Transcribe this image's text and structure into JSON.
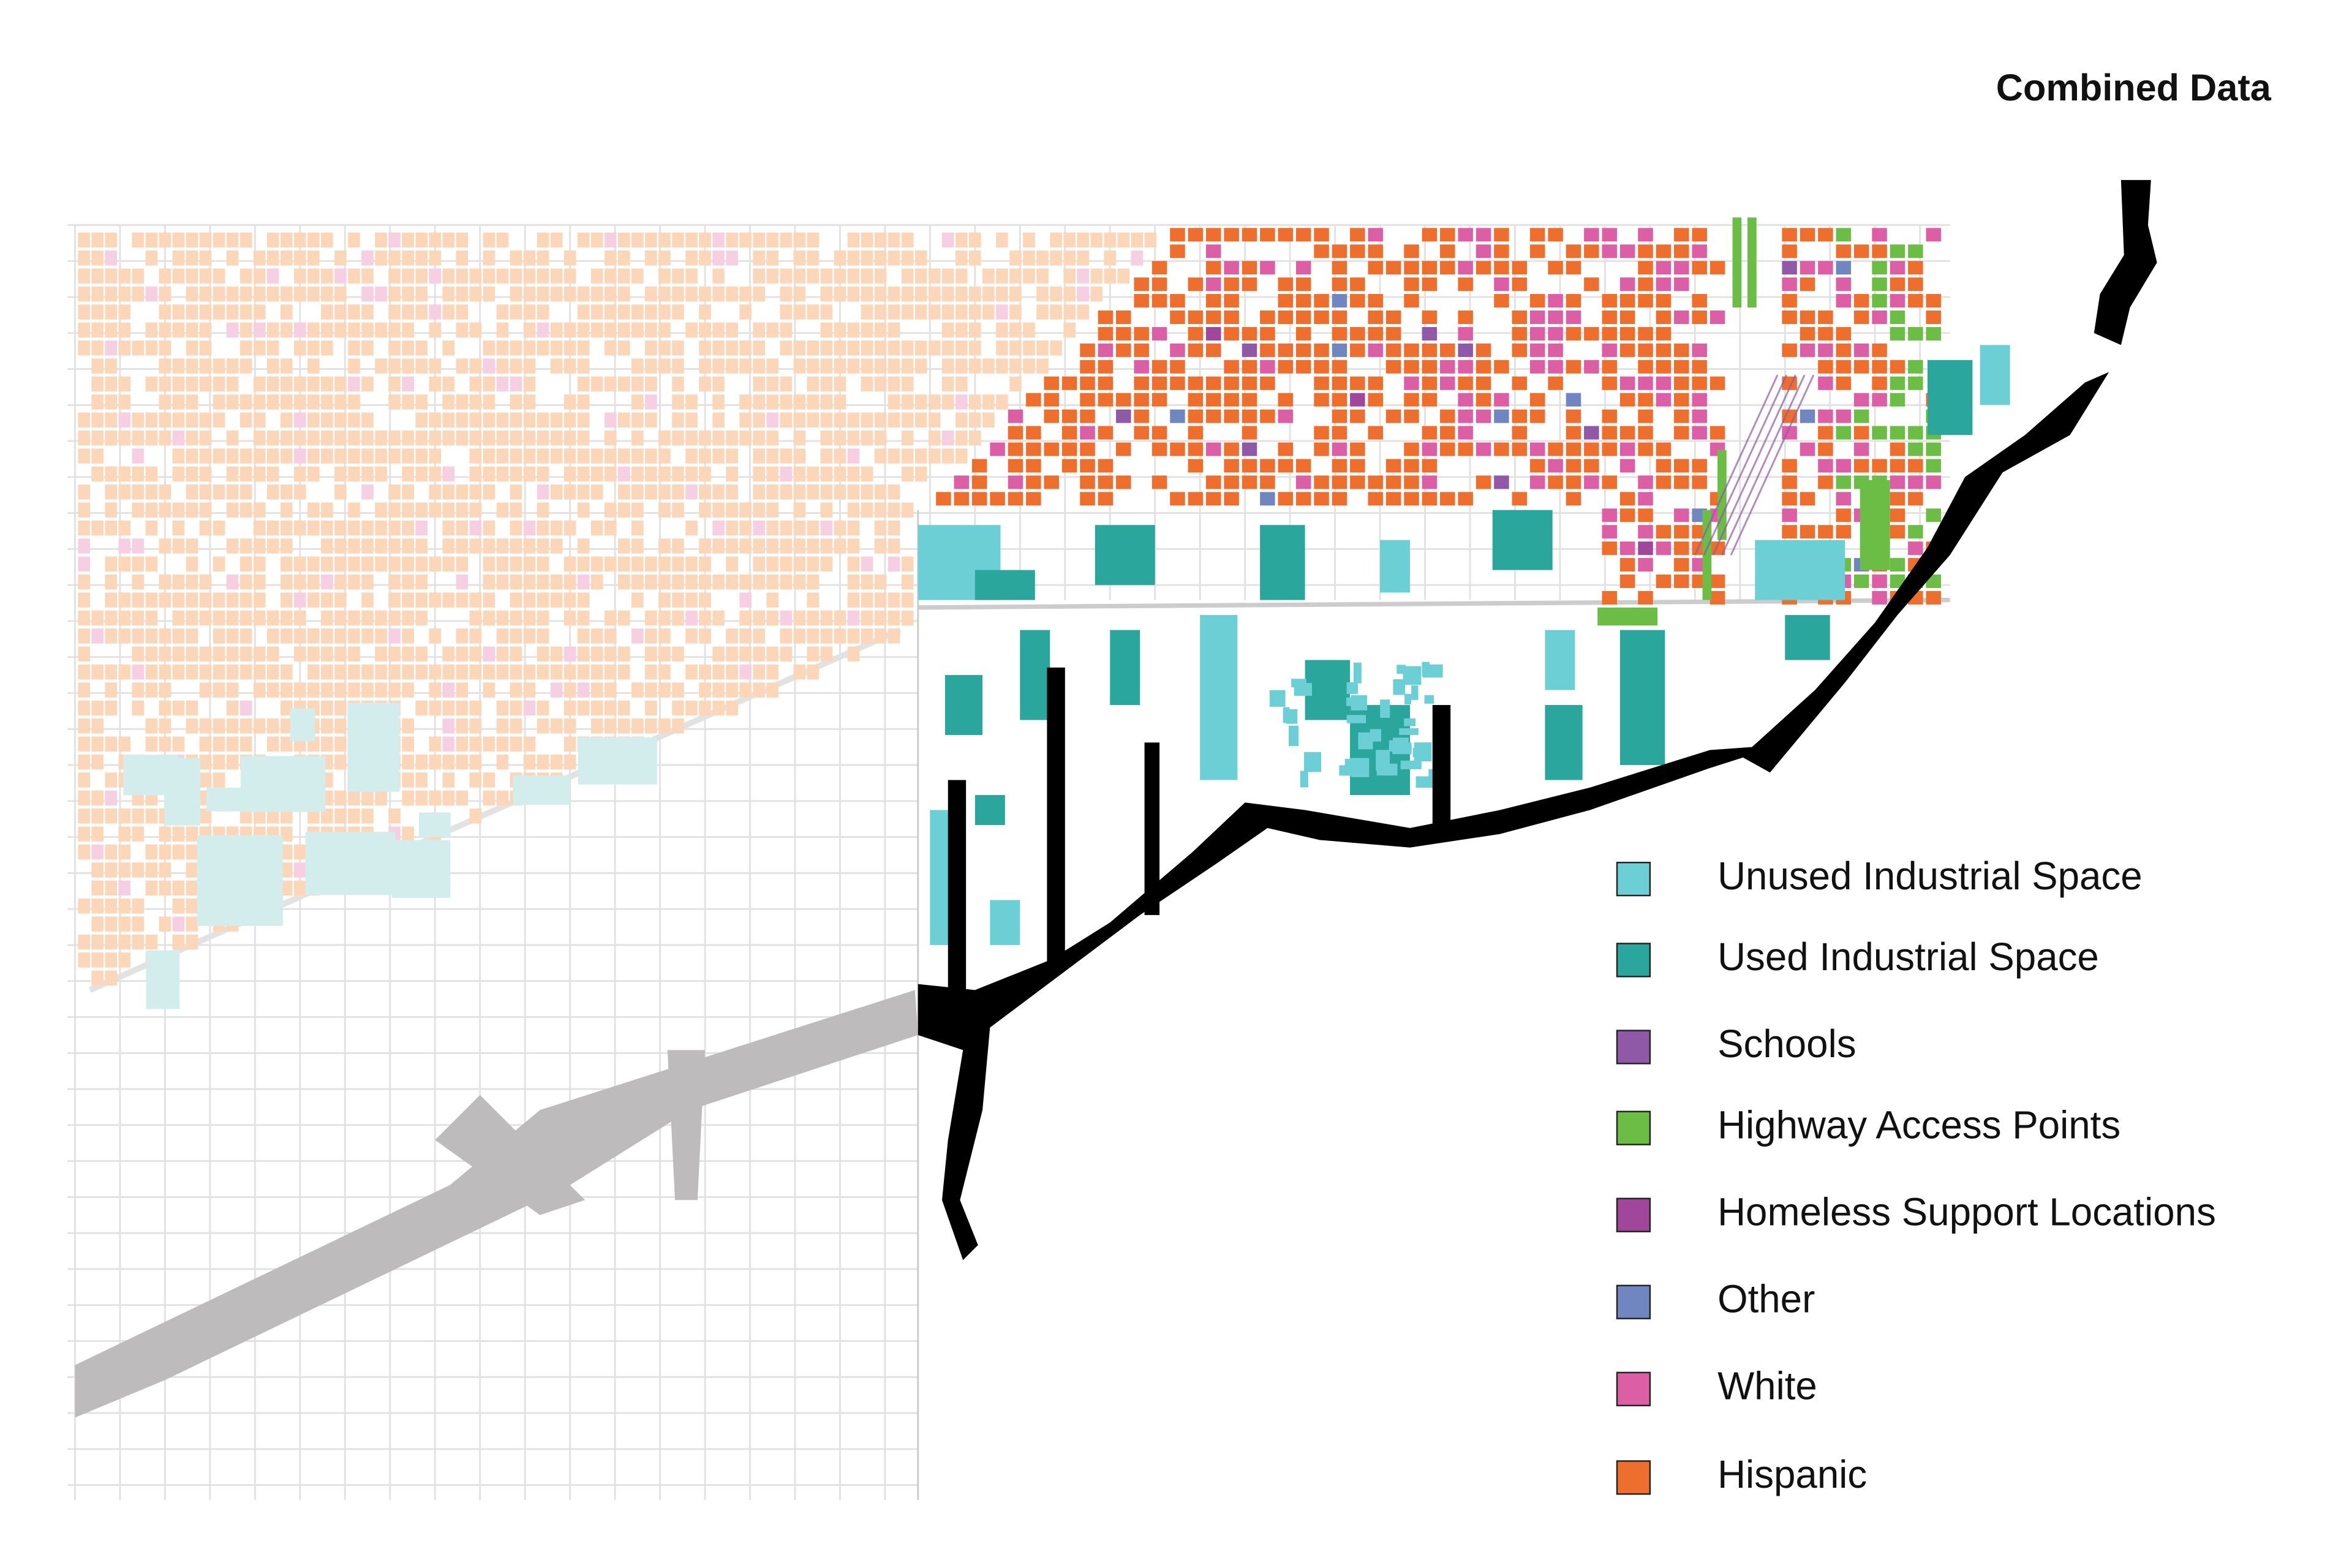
{
  "title": "Combined Data",
  "legend": {
    "items": [
      {
        "label": "Unused Industrial Space",
        "color": "#6ccfd6"
      },
      {
        "label": "Used Industrial Space",
        "color": "#2ba69d"
      },
      {
        "label": "Schools",
        "color": "#9059a8"
      },
      {
        "label": "Highway Access Points",
        "color": "#6cbd45"
      },
      {
        "label": "Homeless Support Locations",
        "color": "#a0479b"
      },
      {
        "label": "Other",
        "color": "#6f86c0"
      },
      {
        "label": "White",
        "color": "#dc5fa5"
      },
      {
        "label": "Hispanic",
        "color": "#ee6f2d"
      }
    ]
  }
}
